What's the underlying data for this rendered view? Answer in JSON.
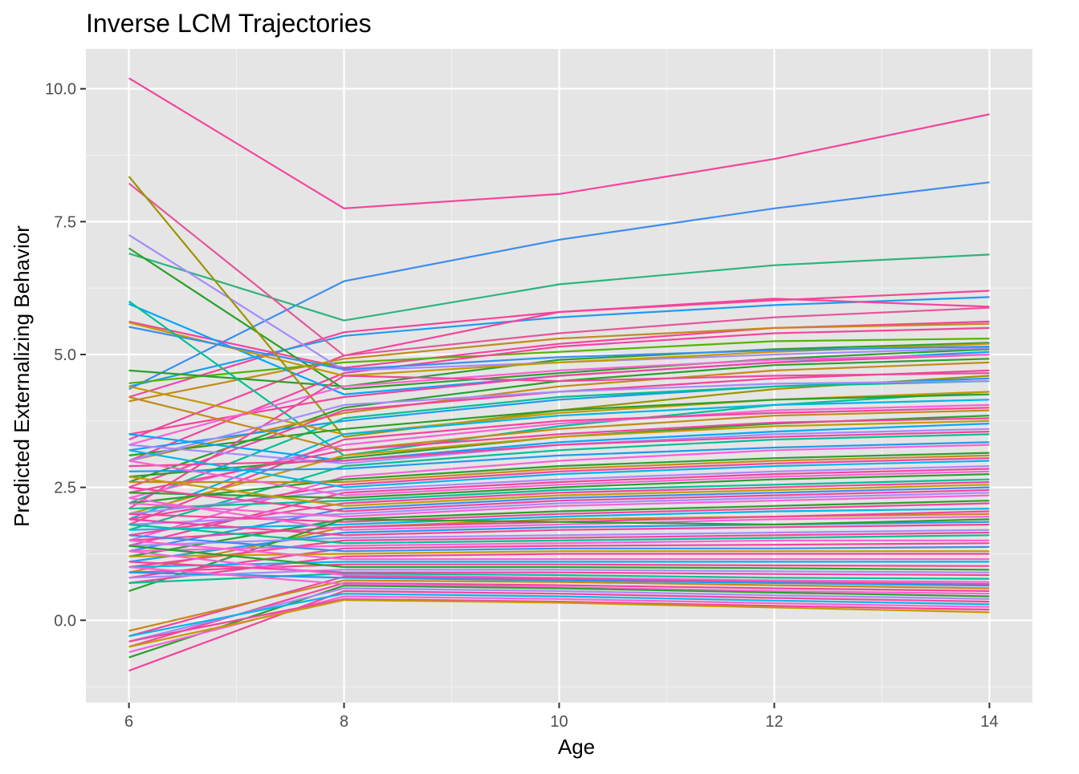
{
  "chart_data": {
    "type": "line",
    "title": "Inverse LCM Trajectories",
    "xlabel": "Age",
    "ylabel": "Predicted Externalizing Behavior",
    "xlim": [
      5.6,
      14.4
    ],
    "ylim": [
      -1.55,
      10.75
    ],
    "x": [
      6,
      8,
      10,
      12,
      14
    ],
    "x_ticks": [
      {
        "value": 6,
        "label": "6"
      },
      {
        "value": 8,
        "label": "8"
      },
      {
        "value": 10,
        "label": "10"
      },
      {
        "value": 12,
        "label": "12"
      },
      {
        "value": 14,
        "label": "14"
      }
    ],
    "y_ticks": [
      {
        "value": 0,
        "label": "0.0"
      },
      {
        "value": 2.5,
        "label": "2.5"
      },
      {
        "value": 5,
        "label": "5.0"
      },
      {
        "value": 7.5,
        "label": "7.5"
      },
      {
        "value": 10,
        "label": "10.0"
      }
    ],
    "x_minor_breaks": [
      7,
      9,
      11,
      13
    ],
    "y_minor_breaks": [
      -1.25,
      1.25,
      3.75,
      6.25,
      8.75
    ],
    "grid": true,
    "legend": "none",
    "background": "#e5e5e5",
    "palette": [
      "#f8766d",
      "#c49a00",
      "#53b400",
      "#00c094",
      "#00b6eb",
      "#a58aff",
      "#fb61d7",
      "#f4449c",
      "#3c8df0",
      "#2aa02a",
      "#9b9500",
      "#c77cff"
    ],
    "series": [
      {
        "color": "#f4449c",
        "values": [
          10.2,
          7.75,
          8.02,
          8.68,
          9.52
        ]
      },
      {
        "color": "#3c8df0",
        "values": [
          4.35,
          6.38,
          7.16,
          7.75,
          8.24
        ]
      },
      {
        "color": "#2db47f",
        "values": [
          6.9,
          5.64,
          6.32,
          6.68,
          6.88
        ]
      },
      {
        "color": "#f4449c",
        "values": [
          4.2,
          5.42,
          5.8,
          6.02,
          6.2
        ]
      },
      {
        "color": "#1e9bf0",
        "values": [
          4.4,
          5.35,
          5.7,
          5.93,
          6.08
        ]
      },
      {
        "color": "#f4449c",
        "values": [
          3.4,
          4.98,
          5.8,
          6.05,
          5.9
        ]
      },
      {
        "color": "#e4579a",
        "values": [
          8.22,
          4.98,
          5.4,
          5.7,
          5.88
        ]
      },
      {
        "color": "#f4449c",
        "values": [
          5.62,
          4.75,
          5.2,
          5.5,
          5.62
        ]
      },
      {
        "color": "#c48a1a",
        "values": [
          4.12,
          4.92,
          5.3,
          5.5,
          5.58
        ]
      },
      {
        "color": "#53b400",
        "values": [
          4.46,
          4.85,
          5.05,
          5.25,
          5.3
        ]
      },
      {
        "color": "#2aa02a",
        "values": [
          4.7,
          4.4,
          4.9,
          5.1,
          5.22
        ]
      },
      {
        "color": "#f4449c",
        "values": [
          3.0,
          4.65,
          5.15,
          5.4,
          5.5
        ]
      },
      {
        "color": "#2aa02a",
        "values": [
          7.0,
          4.35,
          4.65,
          4.92,
          5.1
        ]
      },
      {
        "color": "#00a6ff",
        "values": [
          5.95,
          4.25,
          4.6,
          4.85,
          5.05
        ]
      },
      {
        "color": "#a58aff",
        "values": [
          7.25,
          4.7,
          4.85,
          5.0,
          5.12
        ]
      },
      {
        "color": "#c49a00",
        "values": [
          5.6,
          4.6,
          4.85,
          5.05,
          5.2
        ]
      },
      {
        "color": "#3c8df0",
        "values": [
          5.52,
          4.72,
          4.95,
          5.08,
          5.15
        ]
      },
      {
        "color": "#9b9500",
        "values": [
          8.35,
          3.45,
          3.95,
          4.35,
          4.6
        ]
      },
      {
        "color": "#00c094",
        "values": [
          6.0,
          3.1,
          3.65,
          4.05,
          4.3
        ]
      },
      {
        "color": "#f4449c",
        "values": [
          3.5,
          4.2,
          4.6,
          4.85,
          5.0
        ]
      },
      {
        "color": "#2aa02a",
        "values": [
          2.6,
          4.0,
          4.5,
          4.8,
          4.92
        ]
      },
      {
        "color": "#c48a1a",
        "values": [
          3.0,
          3.9,
          4.4,
          4.7,
          4.85
        ]
      },
      {
        "color": "#fb61d7",
        "values": [
          3.3,
          4.4,
          4.7,
          4.9,
          5.0
        ]
      },
      {
        "color": "#1e9bf0",
        "values": [
          3.2,
          3.75,
          4.15,
          4.4,
          4.55
        ]
      },
      {
        "color": "#00c094",
        "values": [
          2.2,
          3.8,
          4.2,
          4.4,
          4.5
        ]
      },
      {
        "color": "#f4449c",
        "values": [
          2.5,
          3.95,
          4.3,
          4.55,
          4.7
        ]
      },
      {
        "color": "#c49a00",
        "values": [
          4.4,
          3.5,
          3.9,
          4.15,
          4.3
        ]
      },
      {
        "color": "#2aa02a",
        "values": [
          3.1,
          3.6,
          3.95,
          4.15,
          4.25
        ]
      },
      {
        "color": "#f4449c",
        "values": [
          2.1,
          4.6,
          4.5,
          4.6,
          4.65
        ]
      },
      {
        "color": "#a58aff",
        "values": [
          3.0,
          4.05,
          4.3,
          4.45,
          4.5
        ]
      },
      {
        "color": "#00b6eb",
        "values": [
          1.9,
          3.5,
          3.85,
          4.05,
          4.15
        ]
      },
      {
        "color": "#fb61d7",
        "values": [
          2.3,
          3.3,
          3.7,
          3.95,
          4.05
        ]
      },
      {
        "color": "#c48a1a",
        "values": [
          4.2,
          3.2,
          3.6,
          3.85,
          3.95
        ]
      },
      {
        "color": "#f4449c",
        "values": [
          1.8,
          3.4,
          3.75,
          3.9,
          4.0
        ]
      },
      {
        "color": "#2aa02a",
        "values": [
          2.7,
          3.05,
          3.45,
          3.7,
          3.85
        ]
      },
      {
        "color": "#00a6ff",
        "values": [
          3.5,
          3.0,
          3.35,
          3.55,
          3.7
        ]
      },
      {
        "color": "#f4449c",
        "values": [
          2.4,
          3.2,
          3.5,
          3.72,
          3.8
        ]
      },
      {
        "color": "#c49a00",
        "values": [
          2.0,
          3.1,
          3.45,
          3.65,
          3.75
        ]
      },
      {
        "color": "#a58aff",
        "values": [
          3.3,
          2.95,
          3.3,
          3.5,
          3.6
        ]
      },
      {
        "color": "#00c094",
        "values": [
          1.7,
          2.9,
          3.2,
          3.4,
          3.5
        ]
      },
      {
        "color": "#f4449c",
        "values": [
          2.9,
          3.0,
          3.3,
          3.45,
          3.55
        ]
      },
      {
        "color": "#1e9bf0",
        "values": [
          2.8,
          2.85,
          3.1,
          3.25,
          3.35
        ]
      },
      {
        "color": "#fb61d7",
        "values": [
          1.5,
          2.7,
          3.0,
          3.2,
          3.3
        ]
      },
      {
        "color": "#2aa02a",
        "values": [
          2.2,
          2.65,
          2.9,
          3.05,
          3.15
        ]
      },
      {
        "color": "#c48a1a",
        "values": [
          2.6,
          2.6,
          2.85,
          3.0,
          3.1
        ]
      },
      {
        "color": "#f4449c",
        "values": [
          1.9,
          2.55,
          2.8,
          2.95,
          3.05
        ]
      },
      {
        "color": "#00b6eb",
        "values": [
          3.2,
          2.5,
          2.75,
          2.9,
          3.0
        ]
      },
      {
        "color": "#a58aff",
        "values": [
          2.0,
          2.45,
          2.65,
          2.8,
          2.9
        ]
      },
      {
        "color": "#f4449c",
        "values": [
          1.4,
          2.4,
          2.6,
          2.75,
          2.85
        ]
      },
      {
        "color": "#2aa02a",
        "values": [
          2.4,
          2.3,
          2.5,
          2.65,
          2.75
        ]
      },
      {
        "color": "#fb61d7",
        "values": [
          3.0,
          2.35,
          2.55,
          2.7,
          2.8
        ]
      },
      {
        "color": "#00c094",
        "values": [
          2.1,
          2.25,
          2.45,
          2.55,
          2.65
        ]
      },
      {
        "color": "#f4449c",
        "values": [
          1.6,
          2.2,
          2.4,
          2.5,
          2.6
        ]
      },
      {
        "color": "#c49a00",
        "values": [
          2.7,
          2.15,
          2.35,
          2.45,
          2.55
        ]
      },
      {
        "color": "#3c8df0",
        "values": [
          1.3,
          2.1,
          2.3,
          2.4,
          2.5
        ]
      },
      {
        "color": "#f4449c",
        "values": [
          2.5,
          2.05,
          2.25,
          2.35,
          2.45
        ]
      },
      {
        "color": "#a58aff",
        "values": [
          1.8,
          2.0,
          2.2,
          2.3,
          2.4
        ]
      },
      {
        "color": "#fb61d7",
        "values": [
          2.2,
          1.95,
          2.15,
          2.25,
          2.35
        ]
      },
      {
        "color": "#2aa02a",
        "values": [
          1.2,
          1.9,
          2.05,
          2.15,
          2.25
        ]
      },
      {
        "color": "#f4449c",
        "values": [
          2.0,
          1.85,
          2.0,
          2.1,
          2.2
        ]
      },
      {
        "color": "#00b6eb",
        "values": [
          1.7,
          1.8,
          1.95,
          2.05,
          2.1
        ]
      },
      {
        "color": "#c48a1a",
        "values": [
          0.9,
          1.75,
          1.9,
          1.95,
          2.0
        ]
      },
      {
        "color": "#f4449c",
        "values": [
          1.5,
          1.75,
          1.85,
          1.95,
          2.05
        ]
      },
      {
        "color": "#fb61d7",
        "values": [
          2.3,
          1.7,
          1.8,
          1.9,
          1.95
        ]
      },
      {
        "color": "#1e9bf0",
        "values": [
          1.1,
          1.65,
          1.75,
          1.8,
          1.85
        ]
      },
      {
        "color": "#f4449c",
        "values": [
          1.9,
          1.6,
          1.7,
          1.75,
          1.8
        ]
      },
      {
        "color": "#2aa02a",
        "values": [
          0.55,
          1.9,
          1.85,
          1.8,
          1.9
        ]
      },
      {
        "color": "#a58aff",
        "values": [
          1.4,
          1.55,
          1.6,
          1.65,
          1.7
        ]
      },
      {
        "color": "#f4449c",
        "values": [
          1.0,
          1.5,
          1.55,
          1.6,
          1.65
        ]
      },
      {
        "color": "#00c094",
        "values": [
          1.8,
          1.45,
          1.5,
          1.55,
          1.6
        ]
      },
      {
        "color": "#fb61d7",
        "values": [
          1.3,
          1.4,
          1.45,
          1.5,
          1.5
        ]
      },
      {
        "color": "#f4449c",
        "values": [
          0.8,
          1.35,
          1.4,
          1.42,
          1.45
        ]
      },
      {
        "color": "#3c8df0",
        "values": [
          1.6,
          1.3,
          1.35,
          1.35,
          1.38
        ]
      },
      {
        "color": "#c49a00",
        "values": [
          1.2,
          1.25,
          1.3,
          1.3,
          1.3
        ]
      },
      {
        "color": "#f4449c",
        "values": [
          0.7,
          1.2,
          1.25,
          1.25,
          1.25
        ]
      },
      {
        "color": "#fb61d7",
        "values": [
          1.5,
          1.15,
          1.15,
          1.15,
          1.15
        ]
      },
      {
        "color": "#00b6eb",
        "values": [
          1.0,
          1.1,
          1.1,
          1.1,
          1.1
        ]
      },
      {
        "color": "#f4449c",
        "values": [
          0.9,
          1.05,
          1.05,
          1.03,
          1.02
        ]
      },
      {
        "color": "#2aa02a",
        "values": [
          1.4,
          1.0,
          1.0,
          0.98,
          0.95
        ]
      },
      {
        "color": "#a58aff",
        "values": [
          0.8,
          0.95,
          0.95,
          0.92,
          0.9
        ]
      },
      {
        "color": "#f4449c",
        "values": [
          1.1,
          0.9,
          0.9,
          0.87,
          0.85
        ]
      },
      {
        "color": "#00c094",
        "values": [
          0.7,
          0.88,
          0.85,
          0.8,
          0.78
        ]
      },
      {
        "color": "#fb61d7",
        "values": [
          1.3,
          0.85,
          0.8,
          0.75,
          0.72
        ]
      },
      {
        "color": "#f4449c",
        "values": [
          -0.3,
          0.82,
          0.78,
          0.72,
          0.68
        ]
      },
      {
        "color": "#1e9bf0",
        "values": [
          0.9,
          0.8,
          0.75,
          0.7,
          0.65
        ]
      },
      {
        "color": "#c48a1a",
        "values": [
          -0.2,
          0.75,
          0.72,
          0.66,
          0.6
        ]
      },
      {
        "color": "#f4449c",
        "values": [
          -0.5,
          0.7,
          0.66,
          0.6,
          0.55
        ]
      },
      {
        "color": "#fb61d7",
        "values": [
          1.0,
          0.68,
          0.62,
          0.55,
          0.5
        ]
      },
      {
        "color": "#2aa02a",
        "values": [
          -0.7,
          0.65,
          0.6,
          0.52,
          0.45
        ]
      },
      {
        "color": "#a58aff",
        "values": [
          -0.4,
          0.6,
          0.55,
          0.47,
          0.4
        ]
      },
      {
        "color": "#f4449c",
        "values": [
          -0.95,
          0.55,
          0.5,
          0.42,
          0.35
        ]
      },
      {
        "color": "#00b6eb",
        "values": [
          -0.3,
          0.5,
          0.45,
          0.37,
          0.3
        ]
      },
      {
        "color": "#fb61d7",
        "values": [
          -0.6,
          0.45,
          0.4,
          0.32,
          0.25
        ]
      },
      {
        "color": "#f4449c",
        "values": [
          -0.4,
          0.4,
          0.35,
          0.27,
          0.2
        ]
      },
      {
        "color": "#c49a00",
        "values": [
          -0.5,
          0.38,
          0.33,
          0.24,
          0.15
        ]
      }
    ]
  }
}
